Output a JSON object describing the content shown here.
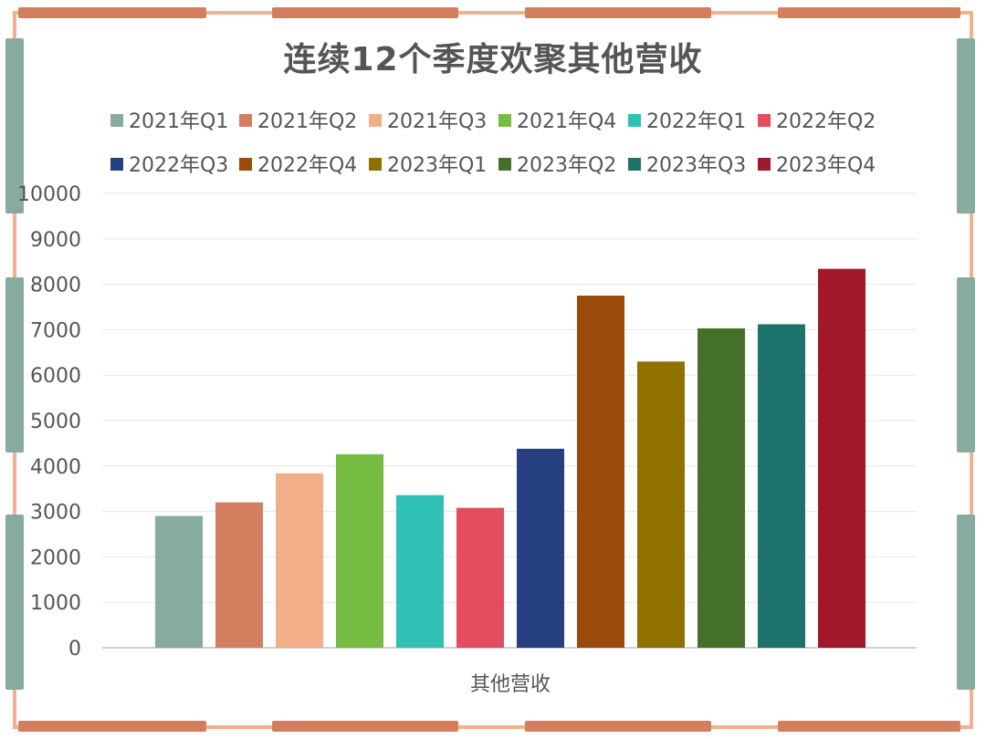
{
  "chart_data": {
    "type": "bar",
    "title": "连续12个季度欢聚其他营收",
    "xlabel": "其他营收",
    "ylabel": "",
    "ylim": [
      0,
      10000
    ],
    "yticks": [
      "0",
      "1000",
      "2000",
      "3000",
      "4000",
      "5000",
      "6000",
      "7000",
      "8000",
      "9000",
      "10000"
    ],
    "grid": true,
    "legend_position": "top",
    "categories": [
      "其他营收"
    ],
    "series": [
      {
        "name": "2021年Q1",
        "values": [
          2900
        ],
        "color": "#88aba0"
      },
      {
        "name": "2021年Q2",
        "values": [
          3200
        ],
        "color": "#d47e60"
      },
      {
        "name": "2021年Q3",
        "values": [
          3840
        ],
        "color": "#f2ae88"
      },
      {
        "name": "2021年Q4",
        "values": [
          4260
        ],
        "color": "#76bc42"
      },
      {
        "name": "2022年Q1",
        "values": [
          3360
        ],
        "color": "#30c1b5"
      },
      {
        "name": "2022年Q2",
        "values": [
          3080
        ],
        "color": "#e44c5f"
      },
      {
        "name": "2022年Q3",
        "values": [
          4380
        ],
        "color": "#253f7f"
      },
      {
        "name": "2022年Q4",
        "values": [
          7750
        ],
        "color": "#9c4a0c"
      },
      {
        "name": "2023年Q1",
        "values": [
          6300
        ],
        "color": "#8f7000"
      },
      {
        "name": "2023年Q2",
        "values": [
          7030
        ],
        "color": "#457029"
      },
      {
        "name": "2023年Q3",
        "values": [
          7120
        ],
        "color": "#1e726c"
      },
      {
        "name": "2023年Q4",
        "values": [
          8340
        ],
        "color": "#a0192a"
      }
    ]
  },
  "frame": {
    "line_color": "#f2b08c",
    "dash_color_horizontal": "#d47e60",
    "dash_color_vertical": "#88aba0"
  }
}
